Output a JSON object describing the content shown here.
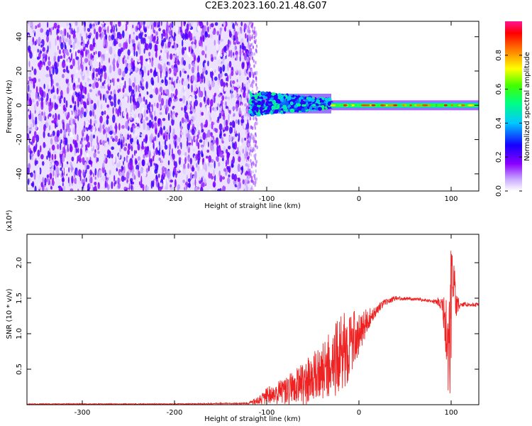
{
  "title": "C2E3.2023.160.21.48.G07",
  "chart_data": [
    {
      "type": "heatmap",
      "xlabel": "Height of straight line (km)",
      "ylabel": "Frequency (Hz)",
      "xlim": [
        -360,
        130
      ],
      "ylim": [
        -50,
        49
      ],
      "xticks": [
        -300,
        -200,
        -100,
        0,
        100
      ],
      "yticks": [
        -40,
        -20,
        0,
        20,
        40
      ],
      "colorbar": {
        "label": "Normalized spectral amplitude",
        "range": [
          0.0,
          1.0
        ],
        "ticks": [
          0.0,
          0.2,
          0.4,
          0.6,
          0.8
        ],
        "colors": [
          "#ffffff",
          "#8b00ff",
          "#0000ff",
          "#00ffff",
          "#00ff00",
          "#ffff00",
          "#ff0000",
          "#ff1493"
        ]
      },
      "regions": [
        {
          "x": [
            -360,
            -118
          ],
          "y": [
            -50,
            49
          ],
          "amplitude": [
            0.0,
            0.25
          ],
          "pattern": "noise"
        },
        {
          "x": [
            -118,
            -30
          ],
          "y": [
            -6,
            8
          ],
          "amplitude": [
            0.3,
            0.55
          ],
          "pattern": "band"
        },
        {
          "x": [
            -30,
            130
          ],
          "y": [
            -2,
            2
          ],
          "amplitude": [
            0.5,
            0.95
          ],
          "pattern": "narrow line",
          "center_freq": 0
        }
      ]
    },
    {
      "type": "line",
      "xlabel": "Height of straight line (km)",
      "ylabel": "SNR (10 * v/v)",
      "y_multiplier": "(x10⁴)",
      "xlim": [
        -360,
        130
      ],
      "ylim": [
        0,
        2.4
      ],
      "xticks": [
        -300,
        -200,
        -100,
        0,
        100
      ],
      "yticks": [
        0.5,
        1.0,
        1.5,
        2.0
      ],
      "ytick_labels": [
        "0.5",
        "1.0",
        "1.5",
        "2.0"
      ],
      "series": [
        {
          "color": "#ee2222",
          "x": [
            -360,
            -300,
            -200,
            -120,
            -110,
            -100,
            -80,
            -60,
            -40,
            -20,
            -10,
            0,
            10,
            20,
            30,
            40,
            60,
            80,
            90,
            95,
            98,
            100,
            102,
            105,
            110,
            120,
            130
          ],
          "y": [
            0.01,
            0.01,
            0.01,
            0.02,
            0.05,
            0.12,
            0.2,
            0.3,
            0.45,
            0.7,
            0.85,
            1.0,
            1.2,
            1.35,
            1.45,
            1.5,
            1.49,
            1.46,
            1.43,
            1.1,
            0.6,
            1.4,
            1.9,
            1.42,
            1.41,
            1.41,
            1.41
          ],
          "noise_amplitude": [
            0.0,
            0.0,
            0.0,
            0.01,
            0.05,
            0.12,
            0.2,
            0.3,
            0.4,
            0.55,
            0.5,
            0.3,
            0.15,
            0.07,
            0.04,
            0.03,
            0.02,
            0.02,
            0.1,
            0.5,
            0.8,
            0.9,
            0.5,
            0.2,
            0.03,
            0.03,
            0.02
          ]
        }
      ]
    }
  ]
}
